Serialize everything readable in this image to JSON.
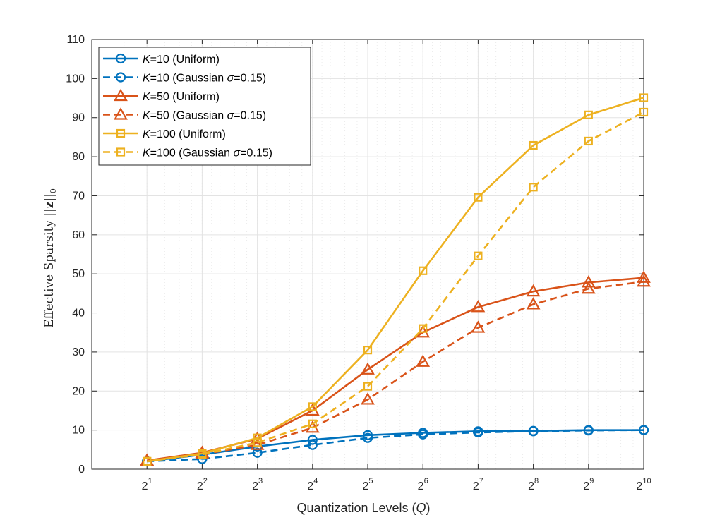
{
  "chart_data": {
    "type": "line",
    "title": "",
    "xlabel": "Quantization Levels (Q)",
    "ylabel": "Effective Sparsity ||z||0",
    "x_scale": "log2",
    "x": [
      2,
      4,
      8,
      16,
      32,
      64,
      128,
      256,
      512,
      1024
    ],
    "x_exponents": [
      "1",
      "2",
      "3",
      "4",
      "5",
      "6",
      "7",
      "8",
      "9",
      "10"
    ],
    "x_tick_base": "2",
    "ylim": [
      0,
      110
    ],
    "yticks": [
      0,
      10,
      20,
      30,
      40,
      50,
      60,
      70,
      80,
      90,
      100,
      110
    ],
    "grid": true,
    "legend_position": "top-left",
    "series": [
      {
        "name": "K=10 (Uniform)",
        "label_var": "K",
        "label_rest": "=10 (Uniform)",
        "label_sigma": "",
        "label_tail": "",
        "color": "#0072BD",
        "line": "solid",
        "marker": "circle",
        "values": [
          2.0,
          3.7,
          5.8,
          7.5,
          8.7,
          9.3,
          9.7,
          9.8,
          10.0,
          10.0
        ]
      },
      {
        "name": "K=10 (Gaussian σ=0.15)",
        "label_var": "K",
        "label_rest": "=10 (Gaussian ",
        "label_sigma": "σ",
        "label_tail": "=0.15)",
        "color": "#0072BD",
        "line": "dashed",
        "marker": "circle",
        "values": [
          2.0,
          2.6,
          4.2,
          6.2,
          8.0,
          8.9,
          9.4,
          9.7,
          9.9,
          10.0
        ]
      },
      {
        "name": "K=50 (Uniform)",
        "label_var": "K",
        "label_rest": "=50 (Uniform)",
        "label_sigma": "",
        "label_tail": "",
        "color": "#D95319",
        "line": "solid",
        "marker": "triangle",
        "values": [
          2.2,
          4.2,
          7.8,
          15.0,
          25.5,
          35.0,
          41.5,
          45.5,
          47.8,
          49.0
        ]
      },
      {
        "name": "K=50 (Gaussian σ=0.15)",
        "label_var": "K",
        "label_rest": "=50 (Gaussian ",
        "label_sigma": "σ",
        "label_tail": "=0.15)",
        "color": "#D95319",
        "line": "dashed",
        "marker": "triangle",
        "values": [
          2.2,
          3.8,
          6.2,
          10.6,
          17.8,
          27.5,
          36.2,
          42.2,
          46.2,
          48.0
        ]
      },
      {
        "name": "K=100 (Uniform)",
        "label_var": "K",
        "label_rest": "=100 (Uniform)",
        "label_sigma": "",
        "label_tail": "",
        "color": "#EDB120",
        "line": "solid",
        "marker": "square",
        "values": [
          2.0,
          4.0,
          8.0,
          16.0,
          30.5,
          50.8,
          69.6,
          82.9,
          90.7,
          95.1
        ]
      },
      {
        "name": "K=100 (Gaussian σ=0.15)",
        "label_var": "K",
        "label_rest": "=100 (Gaussian ",
        "label_sigma": "σ",
        "label_tail": "=0.15)",
        "color": "#EDB120",
        "line": "dashed",
        "marker": "square",
        "values": [
          2.0,
          3.8,
          6.8,
          11.6,
          21.2,
          36.0,
          54.6,
          72.2,
          84.0,
          91.4
        ]
      }
    ]
  }
}
